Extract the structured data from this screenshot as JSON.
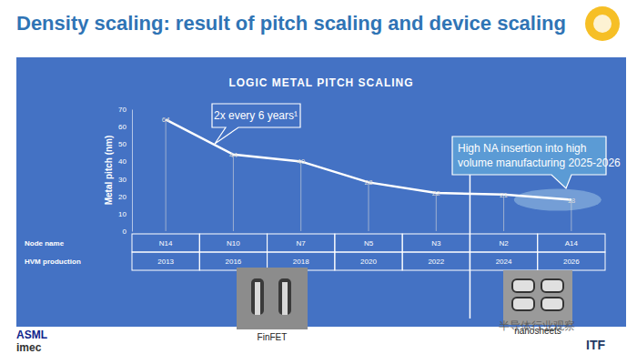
{
  "page": {
    "title": "Density scaling: result of pitch scaling and device scaling",
    "logos": [
      "ASML",
      "imec",
      "ITF"
    ],
    "images": [
      "FinFET",
      "nanosheets"
    ],
    "watermark": "半导体行业观察"
  },
  "chart_data": {
    "type": "line",
    "title": "LOGIC METAL PITCH SCALING",
    "y_label": "Metal pitch (nm)",
    "categories": [
      "N14",
      "N10",
      "N7",
      "N5",
      "N3",
      "N2",
      "A14"
    ],
    "values": [
      64,
      44,
      40,
      28,
      22,
      21,
      18
    ],
    "color": "#ffffff",
    "marker": "none",
    "data_labels": true,
    "grid": false,
    "ylim": [
      0,
      70
    ],
    "yticks": [
      0,
      10,
      20,
      30,
      40,
      50,
      60,
      70
    ],
    "row_labels": [
      "Node name",
      "HVM production"
    ],
    "hvm_production": [
      "2013",
      "2016",
      "2018",
      "2020",
      "2022",
      "2024",
      "2026"
    ],
    "annotations": [
      {
        "text": [
          "2x every 6 years¹"
        ]
      },
      {
        "text": [
          "High NA insertion into high",
          "volume manufacturing 2025-2026"
        ]
      }
    ]
  }
}
